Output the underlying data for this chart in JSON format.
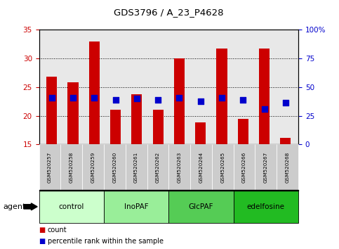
{
  "title": "GDS3796 / A_23_P4628",
  "samples": [
    "GSM520257",
    "GSM520258",
    "GSM520259",
    "GSM520260",
    "GSM520261",
    "GSM520262",
    "GSM520263",
    "GSM520264",
    "GSM520265",
    "GSM520266",
    "GSM520267",
    "GSM520268"
  ],
  "count_values": [
    26.8,
    25.8,
    33.0,
    21.0,
    23.8,
    21.0,
    30.0,
    18.9,
    31.8,
    19.5,
    31.8,
    16.1
  ],
  "percentile_values": [
    23.1,
    23.1,
    23.2,
    22.8,
    23.0,
    22.8,
    23.2,
    22.5,
    23.2,
    22.8,
    21.2,
    22.3
  ],
  "count_base": 15,
  "ylim_left": [
    15,
    35
  ],
  "ylim_right": [
    0,
    100
  ],
  "yticks_left": [
    15,
    20,
    25,
    30,
    35
  ],
  "yticks_right": [
    0,
    25,
    50,
    75,
    100
  ],
  "ytick_right_labels": [
    "0",
    "25",
    "50",
    "75",
    "100%"
  ],
  "groups": [
    {
      "label": "control",
      "start": 0,
      "end": 3,
      "color": "#ccffcc"
    },
    {
      "label": "InoPAF",
      "start": 3,
      "end": 6,
      "color": "#99ee99"
    },
    {
      "label": "GlcPAF",
      "start": 6,
      "end": 9,
      "color": "#55cc55"
    },
    {
      "label": "edelfosine",
      "start": 9,
      "end": 12,
      "color": "#22bb22"
    }
  ],
  "bar_color": "#cc0000",
  "dot_color": "#0000cc",
  "plot_bg_color": "#e8e8e8",
  "tick_label_color_left": "#cc0000",
  "tick_label_color_right": "#0000cc",
  "bar_width": 0.5,
  "dot_size": 35,
  "legend_red_label": "count",
  "legend_blue_label": "percentile rank within the sample",
  "agent_label": "agent",
  "xlim": [
    -0.6,
    11.6
  ]
}
